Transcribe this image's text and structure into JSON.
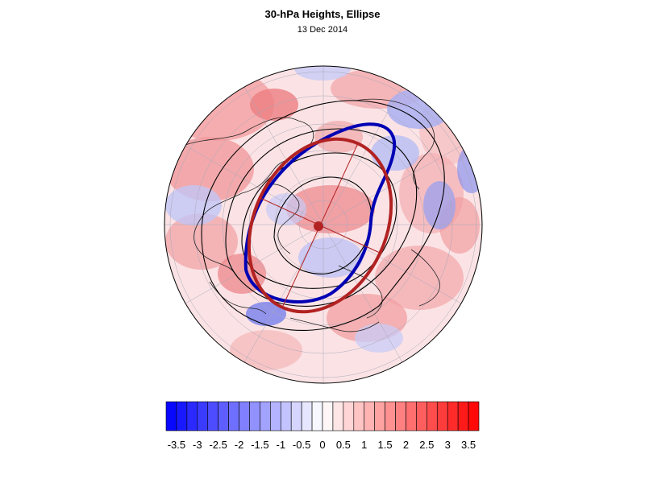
{
  "title": "30-hPa Heights, Ellipse",
  "subtitle": "13 Dec 2014",
  "colors": {
    "ellipse_primary": "#b22222",
    "ellipse_secondary": "#0000b4",
    "contour": "#000000",
    "colorbar_low": "#0000ff",
    "colorbar_mid": "#ffffff",
    "colorbar_high": "#ff0000"
  },
  "colorbar": {
    "min": -3.75,
    "max": 3.75,
    "step": 0.25,
    "tick_labels": [
      "-3.5",
      "-3",
      "-2.5",
      "-2",
      "-1.5",
      "-1",
      "-0.5",
      "0",
      "0.5",
      "1",
      "1.5",
      "2",
      "2.5",
      "3",
      "3.5"
    ]
  }
}
